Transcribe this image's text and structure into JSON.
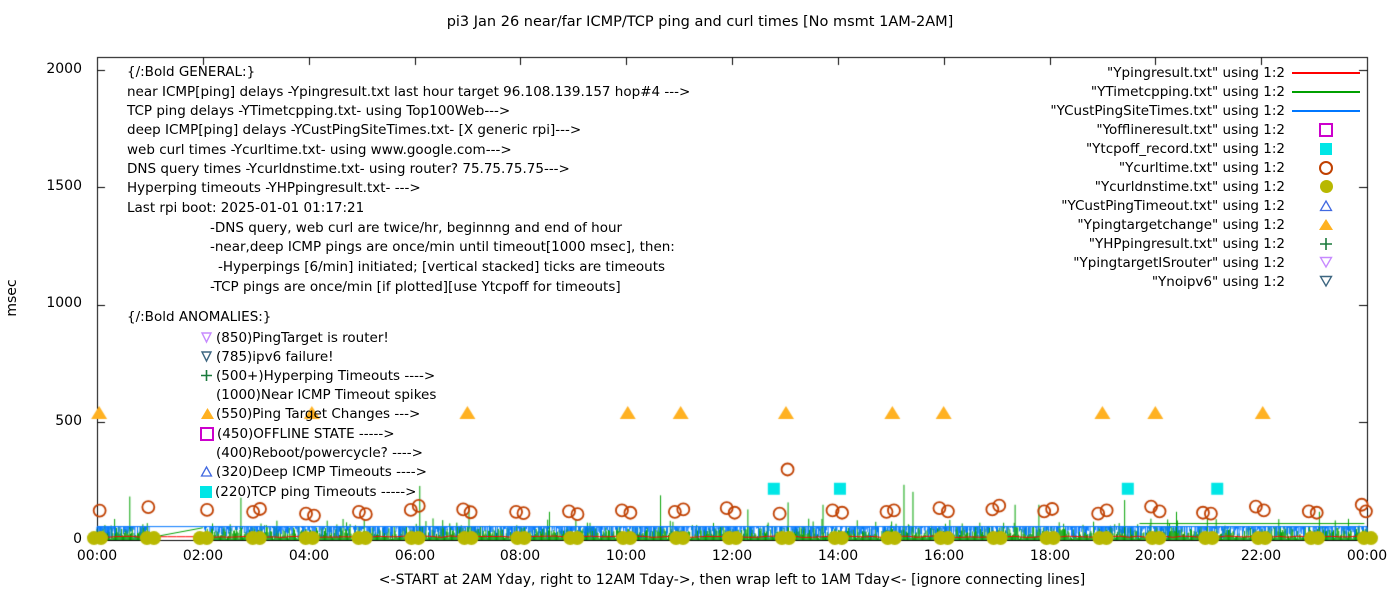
{
  "title": "pi3 Jan 26  near/far ICMP/TCP ping and curl times [No msmt 1AM-2AM]",
  "ylabel": "msec",
  "footer": "<-START at 2AM Yday, right to 12AM Tday->, then wrap left to 1AM Tday<- [ignore connecting lines]",
  "y_tick_labels": [
    "0",
    "500",
    "1000",
    "1500",
    "2000"
  ],
  "x_tick_labels": [
    "00:00",
    "02:00",
    "04:00",
    "06:00",
    "08:00",
    "10:00",
    "12:00",
    "14:00",
    "16:00",
    "18:00",
    "20:00",
    "22:00",
    "00:00"
  ],
  "legend": {
    "items": [
      {
        "label": "\"Ypingresult.txt\" using 1:2",
        "marker": "red-line",
        "color": "#ff0000"
      },
      {
        "label": "\"YTimetcpping.txt\" using 1:2",
        "marker": "green-line",
        "color": "#00a000"
      },
      {
        "label": "\"YCustPingSiteTimes.txt\" using 1:2",
        "marker": "blue-line",
        "color": "#0077ff"
      },
      {
        "label": "\"Yofflineresult.txt\" using 1:2",
        "marker": "open-square",
        "color": "#cc00cc"
      },
      {
        "label": "\"Ytcpoff_record.txt\" using 1:2",
        "marker": "filled-square",
        "color": "#00e6e6"
      },
      {
        "label": "\"Ycurltime.txt\" using 1:2",
        "marker": "open-circle",
        "color": "#c04000"
      },
      {
        "label": "\"Ycurldnstime.txt\" using 1:2",
        "marker": "filled-circle",
        "color": "#b8b800"
      },
      {
        "label": "\"YCustPingTimeout.txt\" using 1:2",
        "marker": "open-triangle-up",
        "color": "#4169e1"
      },
      {
        "label": "\"Ypingtargetchange\" using 1:2",
        "marker": "filled-triangle-up",
        "color": "#ffb121"
      },
      {
        "label": "\"YHPpingresult.txt\" using 1:2",
        "marker": "plus",
        "color": "#1a7a3c"
      },
      {
        "label": "\"YpingtargetISrouter\" using 1:2",
        "marker": "open-triangle-down",
        "color": "#c78aff"
      },
      {
        "label": "\"Ynoipv6\" using 1:2",
        "marker": "open-triangle-down",
        "color": "#3d6680"
      }
    ]
  },
  "notes": {
    "general": [
      "{/:Bold GENERAL:}",
      "near ICMP[ping] delays -Ypingresult.txt last hour target 96.108.139.157 hop#4 --->",
      "TCP ping delays -YTimetcpping.txt- using Top100Web--->",
      "deep ICMP[ping] delays -YCustPingSiteTimes.txt- [X generic rpi]--->",
      "web curl times -Ycurltime.txt- using www.google.com--->",
      "DNS query times -Ycurldnstime.txt- using router? 75.75.75.75--->",
      "Hyperping timeouts -YHPpingresult.txt- --->",
      "Last rpi boot: 2025-01-01 01:17:21",
      "-DNS query, web curl are twice/hr, beginnng and end of hour",
      "-near,deep ICMP pings are once/min until timeout[1000 msec], then:",
      "-Hyperpings [6/min] initiated; [vertical stacked] ticks are timeouts",
      "-TCP pings are once/min [if plotted][use Ytcpoff for timeouts]"
    ],
    "anomalies_header": "{/:Bold ANOMALIES:}",
    "anomalies": [
      {
        "marker": "open-triangle-down-violet",
        "text": "(850)PingTarget is router!"
      },
      {
        "marker": "open-triangle-down-slate",
        "text": "(785)ipv6 failure!"
      },
      {
        "marker": "plus",
        "text": "(500+)Hyperping Timeouts ---->"
      },
      {
        "marker": "none",
        "text": "(1000)Near ICMP Timeout spikes"
      },
      {
        "marker": "filled-triangle-up",
        "text": "(550)Ping Target Changes --->"
      },
      {
        "marker": "open-square",
        "text": "(450)OFFLINE STATE ----->"
      },
      {
        "marker": "none",
        "text": "(400)Reboot/powercycle? ---->"
      },
      {
        "marker": "open-triangle-up",
        "text": "(320)Deep ICMP Timeouts ---->"
      },
      {
        "marker": "filled-square",
        "text": "(220)TCP ping Timeouts ----->"
      }
    ]
  },
  "chart_data": {
    "type": "line",
    "title": "pi3 Jan 26  near/far ICMP/TCP ping and curl times [No msmt 1AM-2AM]",
    "xlabel": "<-START at 2AM Yday, right to 12AM Tday->, then wrap left to 1AM Tday<- [ignore connecting lines]",
    "ylabel": "msec",
    "x_tick_hours": [
      0,
      2,
      4,
      6,
      8,
      10,
      12,
      14,
      16,
      18,
      20,
      22,
      24
    ],
    "x_tick_labels": [
      "00:00",
      "02:00",
      "04:00",
      "06:00",
      "08:00",
      "10:00",
      "12:00",
      "14:00",
      "16:00",
      "18:00",
      "20:00",
      "22:00",
      "00:00"
    ],
    "y_ticks": [
      0,
      500,
      1000,
      1500,
      2000
    ],
    "ylim": [
      0,
      2055
    ],
    "xlim_hours": [
      0,
      24
    ],
    "grid": false,
    "legend_position": "top-right",
    "measurement_gap_hours": [
      1,
      2
    ],
    "noise_seed": 20250126,
    "series": [
      {
        "name": "Ypingresult.txt",
        "kind": "flat-line",
        "color": "#ff0000",
        "baseline_msec": 14
      },
      {
        "name": "YTimetcpping.txt",
        "kind": "noisy-line",
        "color": "#00a000",
        "noise_min_msec": 4,
        "noise_max_msec": 58,
        "spikes": [
          [
            0.62,
            185
          ],
          [
            2.72,
            180
          ],
          [
            6.1,
            230
          ],
          [
            7.03,
            150
          ],
          [
            8.55,
            120
          ],
          [
            10.65,
            190
          ],
          [
            12.3,
            130
          ],
          [
            13.06,
            160
          ],
          [
            13.72,
            150
          ],
          [
            15.25,
            235
          ],
          [
            15.42,
            205
          ],
          [
            17.35,
            150
          ],
          [
            17.8,
            150
          ],
          [
            19.42,
            170
          ],
          [
            20.4,
            120
          ],
          [
            23.1,
            120
          ]
        ],
        "elevated_segments": [
          [
            19.7,
            23.95,
            70
          ]
        ]
      },
      {
        "name": "YCustPingSiteTimes.txt",
        "kind": "line-with-drops",
        "color": "#0077ff",
        "level_msec": 57,
        "drop_min_msec": 5,
        "drop_max_msec": 50
      },
      {
        "name": "Yofflineresult.txt",
        "kind": "points",
        "marker": "open-square",
        "color": "#cc00cc",
        "anomaly_level_msec": 450,
        "points": []
      },
      {
        "name": "Ytcpoff_record.txt",
        "kind": "points",
        "marker": "filled-square",
        "color": "#00e6e6",
        "points": [
          [
            12.79,
            218
          ],
          [
            14.04,
            218
          ],
          [
            19.48,
            218
          ],
          [
            21.17,
            218
          ]
        ]
      },
      {
        "name": "Ycurltime.txt",
        "kind": "points",
        "marker": "open-circle",
        "color": "#c04000",
        "points": [
          [
            0.05,
            125
          ],
          [
            0.97,
            140
          ],
          [
            2.08,
            128
          ],
          [
            2.95,
            120
          ],
          [
            3.08,
            132
          ],
          [
            3.95,
            112
          ],
          [
            4.1,
            104
          ],
          [
            4.95,
            120
          ],
          [
            5.08,
            110
          ],
          [
            5.93,
            128
          ],
          [
            6.08,
            145
          ],
          [
            6.92,
            130
          ],
          [
            7.06,
            118
          ],
          [
            7.92,
            120
          ],
          [
            8.06,
            114
          ],
          [
            8.92,
            122
          ],
          [
            9.08,
            110
          ],
          [
            9.92,
            126
          ],
          [
            10.08,
            116
          ],
          [
            10.92,
            120
          ],
          [
            11.08,
            130
          ],
          [
            11.9,
            136
          ],
          [
            12.05,
            116
          ],
          [
            12.9,
            112
          ],
          [
            13.05,
            300
          ],
          [
            13.9,
            126
          ],
          [
            14.08,
            116
          ],
          [
            14.92,
            120
          ],
          [
            15.06,
            126
          ],
          [
            15.92,
            136
          ],
          [
            16.08,
            122
          ],
          [
            16.92,
            130
          ],
          [
            17.05,
            146
          ],
          [
            17.9,
            122
          ],
          [
            18.05,
            132
          ],
          [
            18.92,
            112
          ],
          [
            19.08,
            126
          ],
          [
            19.92,
            142
          ],
          [
            20.08,
            122
          ],
          [
            20.9,
            116
          ],
          [
            21.05,
            112
          ],
          [
            21.9,
            142
          ],
          [
            22.05,
            126
          ],
          [
            22.9,
            122
          ],
          [
            23.05,
            116
          ],
          [
            23.9,
            150
          ],
          [
            23.98,
            122
          ]
        ]
      },
      {
        "name": "Ycurldnstime.txt",
        "kind": "points",
        "marker": "filled-circle",
        "color": "#b8b800",
        "points": [
          [
            0,
            8
          ],
          [
            1,
            8
          ],
          [
            2,
            8
          ],
          [
            3,
            8
          ],
          [
            4,
            8
          ],
          [
            5,
            8
          ],
          [
            6,
            8
          ],
          [
            7,
            8
          ],
          [
            8,
            8
          ],
          [
            9,
            8
          ],
          [
            10,
            8
          ],
          [
            11,
            8
          ],
          [
            12,
            8
          ],
          [
            13,
            8
          ],
          [
            14,
            8
          ],
          [
            15,
            8
          ],
          [
            16,
            8
          ],
          [
            17,
            8
          ],
          [
            18,
            8
          ],
          [
            19,
            8
          ],
          [
            20,
            8
          ],
          [
            21,
            8
          ],
          [
            22,
            8
          ],
          [
            23,
            8
          ],
          [
            24,
            8
          ]
        ]
      },
      {
        "name": "YCustPingTimeout.txt",
        "kind": "points",
        "marker": "open-triangle-up",
        "color": "#4169e1",
        "anomaly_level_msec": 320,
        "points": []
      },
      {
        "name": "Ypingtargetchange",
        "kind": "points",
        "marker": "filled-triangle-up",
        "color": "#ffb121",
        "points": [
          [
            0.04,
            540
          ],
          [
            4.06,
            540
          ],
          [
            7.0,
            540
          ],
          [
            10.03,
            540
          ],
          [
            11.03,
            540
          ],
          [
            13.02,
            540
          ],
          [
            15.03,
            540
          ],
          [
            16.0,
            540
          ],
          [
            19.0,
            540
          ],
          [
            20.0,
            540
          ],
          [
            22.03,
            540
          ]
        ]
      },
      {
        "name": "YHPpingresult.txt",
        "kind": "points",
        "marker": "plus",
        "color": "#1a7a3c",
        "anomaly_level_msec": 500,
        "points": []
      },
      {
        "name": "YpingtargetISrouter",
        "kind": "points",
        "marker": "open-triangle-down",
        "color": "#c78aff",
        "anomaly_level_msec": 850,
        "points": []
      },
      {
        "name": "Ynoipv6",
        "kind": "points",
        "marker": "open-triangle-down",
        "color": "#3d6680",
        "anomaly_level_msec": 785,
        "points": []
      }
    ]
  }
}
